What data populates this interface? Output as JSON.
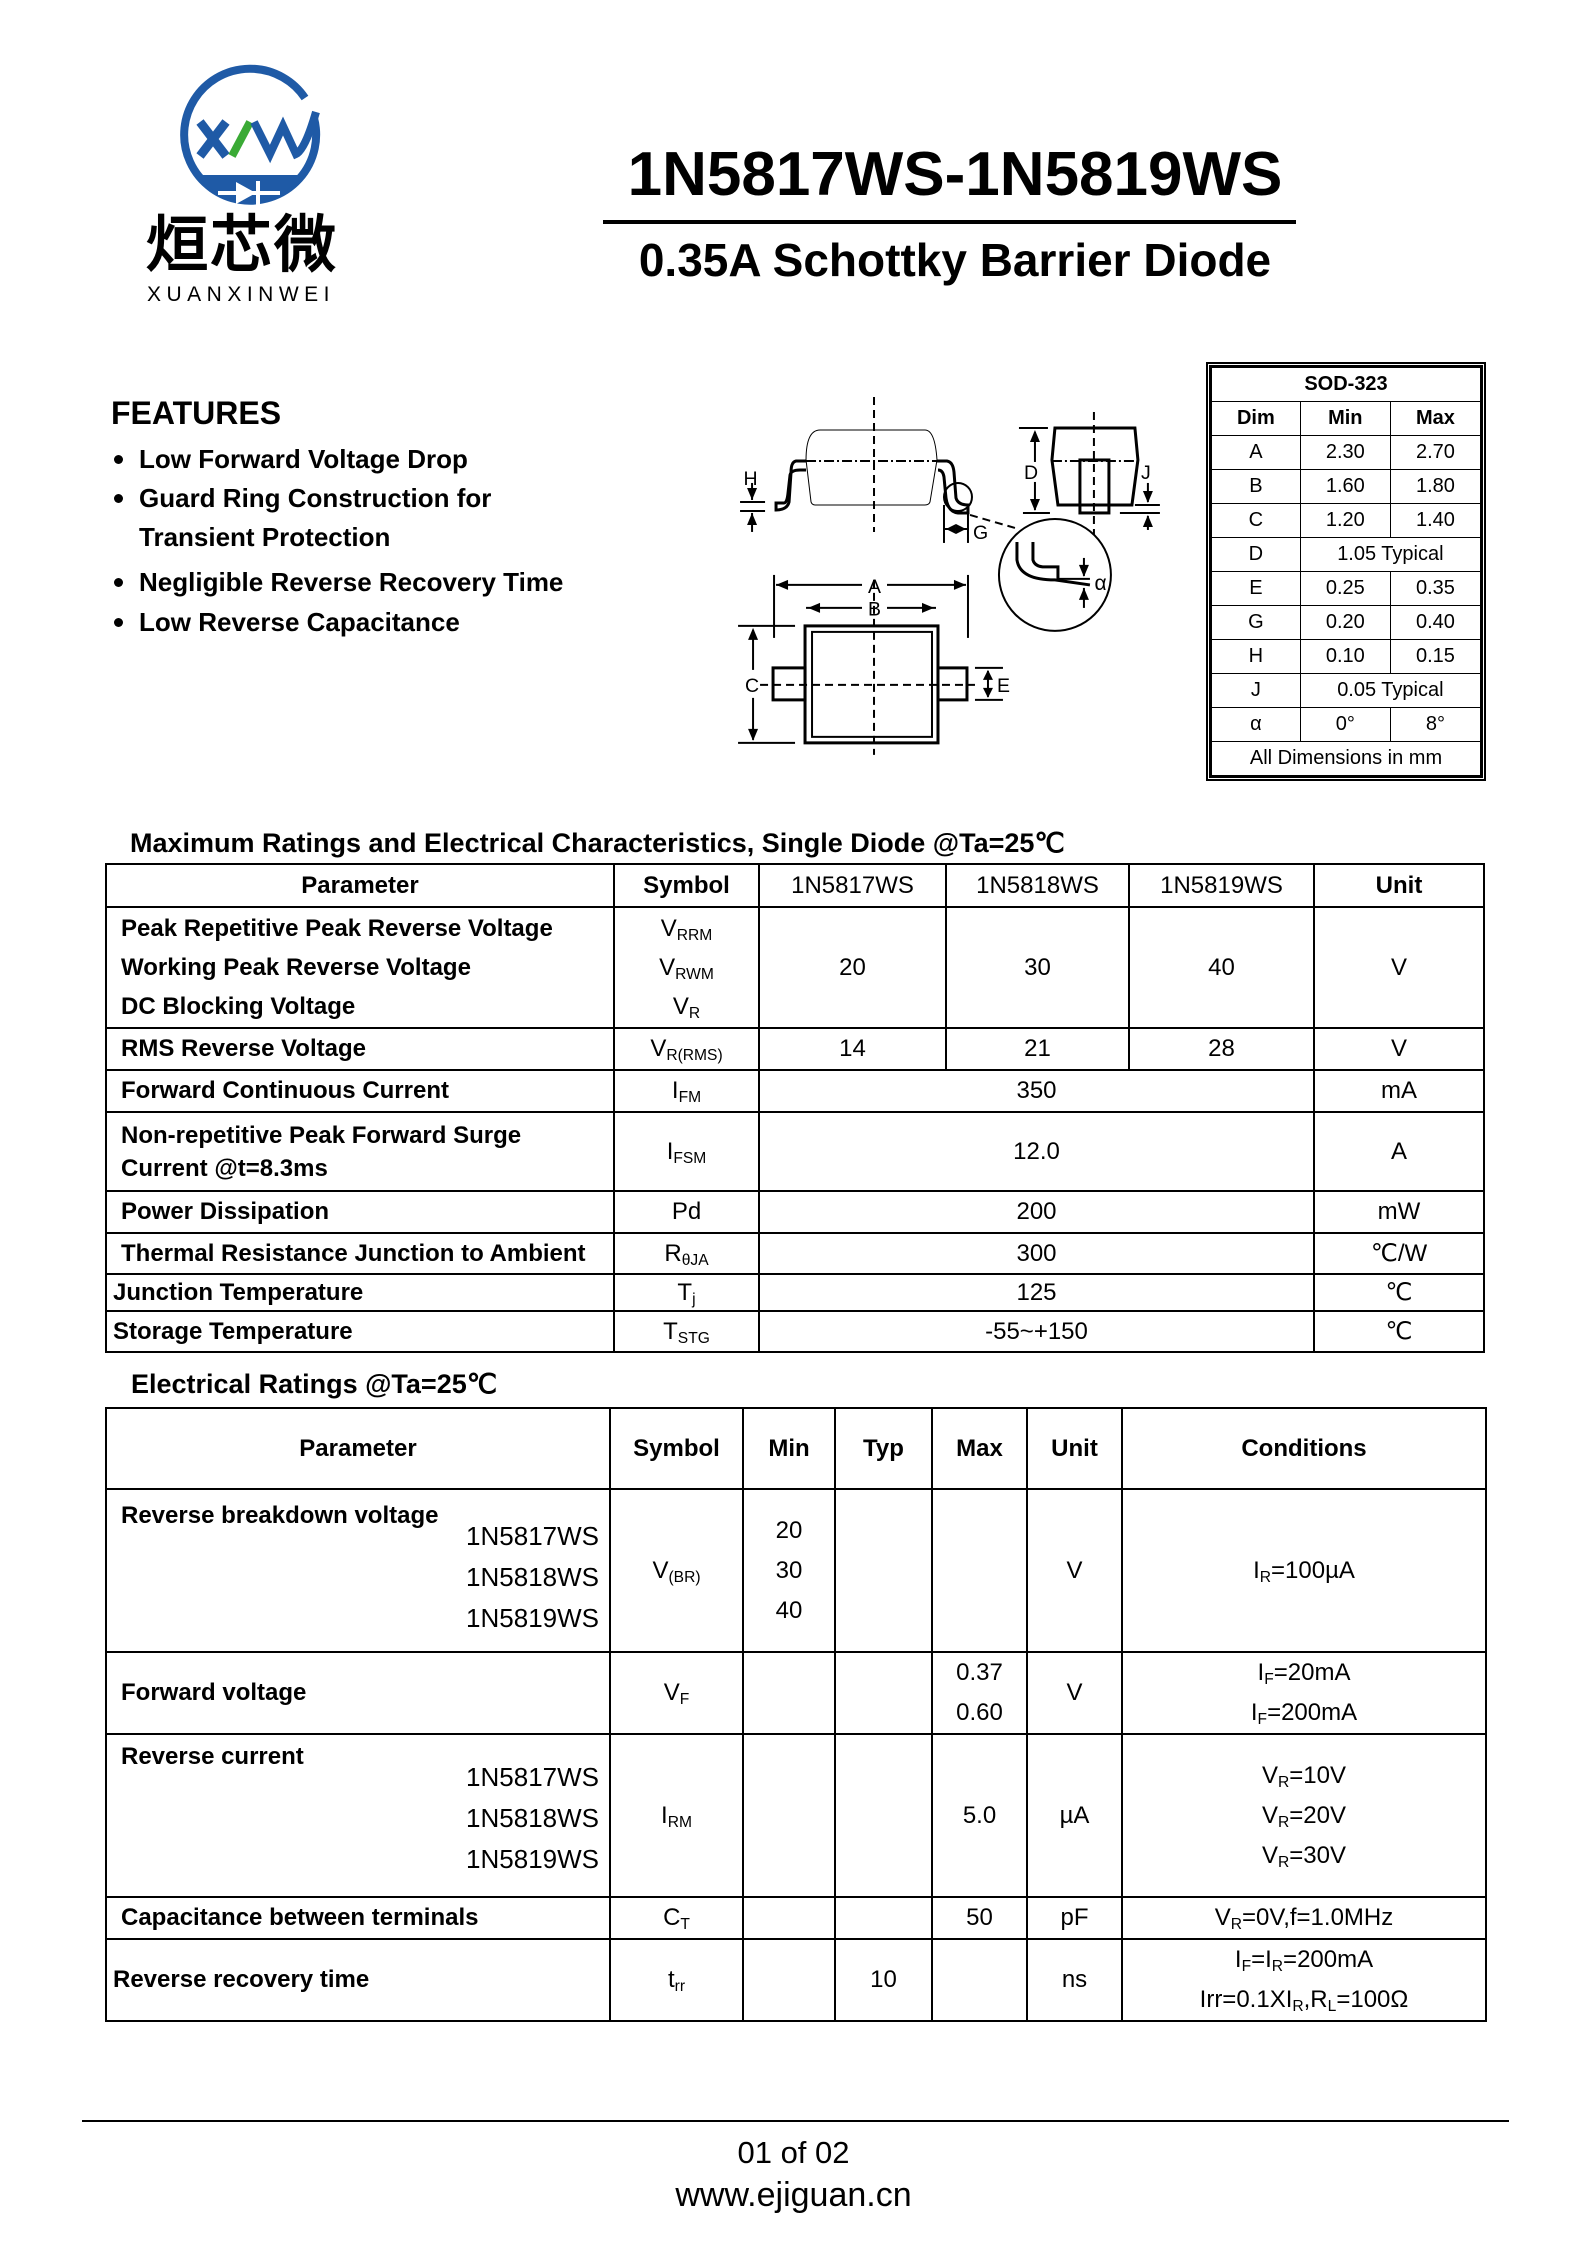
{
  "logo": {
    "monogram": "XW",
    "chinese": "烜芯微",
    "latin": "XUANXINWEI",
    "colors": {
      "blue": "#1f5aa6",
      "green": "#3aaa35"
    }
  },
  "header": {
    "title": "1N5817WS-1N5819WS",
    "subtitle": "0.35A Schottky Barrier Diode"
  },
  "features": {
    "heading": "FEATURES",
    "items": [
      "Low Forward Voltage Drop",
      "Guard Ring Construction for",
      "Transient Protection",
      "Negligible Reverse Recovery Time",
      "Low Reverse Capacitance"
    ]
  },
  "package": {
    "labels": {
      "A": "A",
      "B": "B",
      "C": "C",
      "D": "D",
      "E": "E",
      "G": "G",
      "H": "H",
      "J": "J",
      "alpha": "α"
    },
    "table": {
      "title": "SOD-323",
      "headers": [
        "Dim",
        "Min",
        "Max"
      ],
      "rows": [
        [
          "A",
          "2.30",
          "2.70"
        ],
        [
          "B",
          "1.60",
          "1.80"
        ],
        [
          "C",
          "1.20",
          "1.40"
        ],
        [
          "D",
          "1.05 Typical"
        ],
        [
          "E",
          "0.25",
          "0.35"
        ],
        [
          "G",
          "0.20",
          "0.40"
        ],
        [
          "H",
          "0.10",
          "0.15"
        ],
        [
          "J",
          "0.05 Typical"
        ],
        [
          "α",
          "0°",
          "8°"
        ]
      ],
      "footer": "All Dimensions in mm"
    }
  },
  "max_ratings": {
    "heading": "Maximum Ratings and Electrical Characteristics, Single Diode @Ta=25℃",
    "headers": [
      "Parameter",
      "Symbol",
      "1N5817WS",
      "1N5818WS",
      "1N5819WS",
      "Unit"
    ],
    "rows": [
      {
        "params": [
          "Peak Repetitive Peak Reverse Voltage",
          "Working Peak  Reverse Voltage",
          "DC Blocking  Voltage"
        ],
        "symbols": [
          [
            "V",
            {
              "sub": "RRM"
            }
          ],
          [
            "V",
            {
              "sub": "RWM"
            }
          ],
          [
            "V",
            {
              "sub": "R"
            }
          ]
        ],
        "values": [
          "20",
          "30",
          "40"
        ],
        "unit": "V"
      },
      {
        "params": [
          "RMS Reverse Voltage"
        ],
        "symbols": [
          [
            "V",
            {
              "sub": "R(RMS)"
            }
          ]
        ],
        "values": [
          "14",
          "21",
          "28"
        ],
        "unit": "V"
      },
      {
        "params": [
          "Forward Continuous Current"
        ],
        "symbols": [
          [
            "I",
            {
              "sub": "FM"
            }
          ]
        ],
        "value": "350",
        "unit": "mA"
      },
      {
        "params": [
          "Non-repetitive Peak Forward  Surge",
          "Current @t=8.3ms"
        ],
        "symbols": [
          [
            "I",
            {
              "sub": "FSM"
            }
          ]
        ],
        "value": "12.0",
        "unit": "A"
      },
      {
        "params": [
          "Power Dissipation"
        ],
        "symbols": [
          [
            "Pd"
          ]
        ],
        "value": "200",
        "unit": "mW"
      },
      {
        "params": [
          "Thermal Resistance Junction to Ambient"
        ],
        "symbols": [
          [
            "R",
            {
              "sub": "θJA"
            }
          ]
        ],
        "value": "300",
        "unit": "℃/W"
      },
      {
        "params": [
          "Junction Temperature"
        ],
        "symbols": [
          [
            "T",
            {
              "sub": "j"
            }
          ]
        ],
        "value": "125",
        "unit": "℃"
      },
      {
        "params": [
          "Storage Temperature"
        ],
        "symbols": [
          [
            "T",
            {
              "sub": "STG"
            }
          ]
        ],
        "value": "-55~+150",
        "unit": "℃"
      }
    ]
  },
  "electrical": {
    "heading": "Electrical Ratings @Ta=25℃",
    "headers": [
      "Parameter",
      "Symbol",
      "Min",
      "Typ",
      "Max",
      "Unit",
      "Conditions"
    ],
    "rows": [
      {
        "param": "Reverse breakdown voltage",
        "models": [
          "1N5817WS",
          "1N5818WS",
          "1N5819WS"
        ],
        "symbol": [
          "V",
          {
            "sub": "(BR)"
          }
        ],
        "min": [
          "20",
          "30",
          "40"
        ],
        "unit": "V",
        "conditions": [
          [
            "I",
            {
              "sub": "R"
            },
            "=100µA"
          ]
        ]
      },
      {
        "param": "Forward voltage",
        "symbol": [
          "V",
          {
            "sub": "F"
          }
        ],
        "max": [
          "0.37",
          "0.60"
        ],
        "unit": "V",
        "conditions": [
          [
            "I",
            {
              "sub": "F"
            },
            "=20mA"
          ],
          [
            "I",
            {
              "sub": "F"
            },
            "=200mA"
          ]
        ]
      },
      {
        "param": "Reverse current",
        "models": [
          "1N5817WS",
          "1N5818WS",
          "1N5819WS"
        ],
        "symbol": [
          "I",
          {
            "sub": "RM"
          }
        ],
        "max": [
          "5.0"
        ],
        "unit": "µA",
        "conditions": [
          [
            "V",
            {
              "sub": "R"
            },
            "=10V"
          ],
          [
            "V",
            {
              "sub": "R"
            },
            "=20V"
          ],
          [
            "V",
            {
              "sub": "R"
            },
            "=30V"
          ]
        ]
      },
      {
        "param": "Capacitance between terminals",
        "symbol": [
          "C",
          {
            "sub": "T"
          }
        ],
        "max": [
          "50"
        ],
        "unit": "pF",
        "conditions": [
          [
            "V",
            {
              "sub": "R"
            },
            "=0V,f=1.0MHz"
          ]
        ]
      },
      {
        "param": "Reverse recovery time",
        "symbol": [
          "t",
          {
            "sub": "rr"
          }
        ],
        "typ": [
          "10"
        ],
        "unit": "ns",
        "conditions": [
          [
            "I",
            {
              "sub": "F"
            },
            "=I",
            {
              "sub": "R"
            },
            "=200mA"
          ],
          [
            "Irr=0.1XI",
            {
              "sub": "R"
            },
            ",R",
            {
              "sub": "L"
            },
            "=100Ω"
          ]
        ]
      }
    ]
  },
  "footer": {
    "page": "01 of 02",
    "url": "www.ejiguan.cn"
  }
}
